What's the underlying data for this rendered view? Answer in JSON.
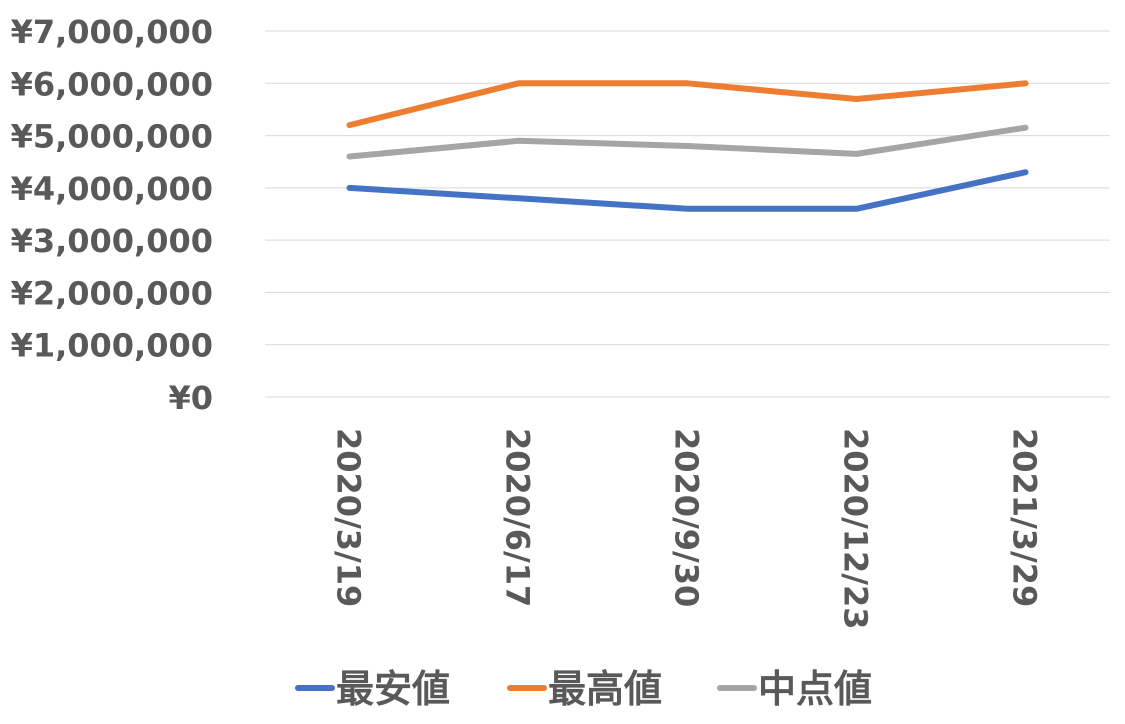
{
  "chart_data": {
    "type": "line",
    "title": "",
    "xlabel": "",
    "ylabel": "",
    "categories": [
      "2020/3/19",
      "2020/6/17",
      "2020/9/30",
      "2020/12/23",
      "2021/3/29"
    ],
    "y_ticks": [
      "¥0",
      "¥1,000,000",
      "¥2,000,000",
      "¥3,000,000",
      "¥4,000,000",
      "¥5,000,000",
      "¥6,000,000",
      "¥7,000,000"
    ],
    "ylim": [
      0,
      7000000
    ],
    "grid": true,
    "legend_position": "bottom",
    "series": [
      {
        "name": "最安値",
        "color": "#4472C4",
        "values": [
          4000000,
          3800000,
          3600000,
          3600000,
          4300000
        ]
      },
      {
        "name": "最高値",
        "color": "#ED7D31",
        "values": [
          5200000,
          6000000,
          6000000,
          5700000,
          6000000
        ]
      },
      {
        "name": "中点値",
        "color": "#A5A5A5",
        "values": [
          4600000,
          4900000,
          4800000,
          4650000,
          5150000
        ]
      }
    ]
  }
}
